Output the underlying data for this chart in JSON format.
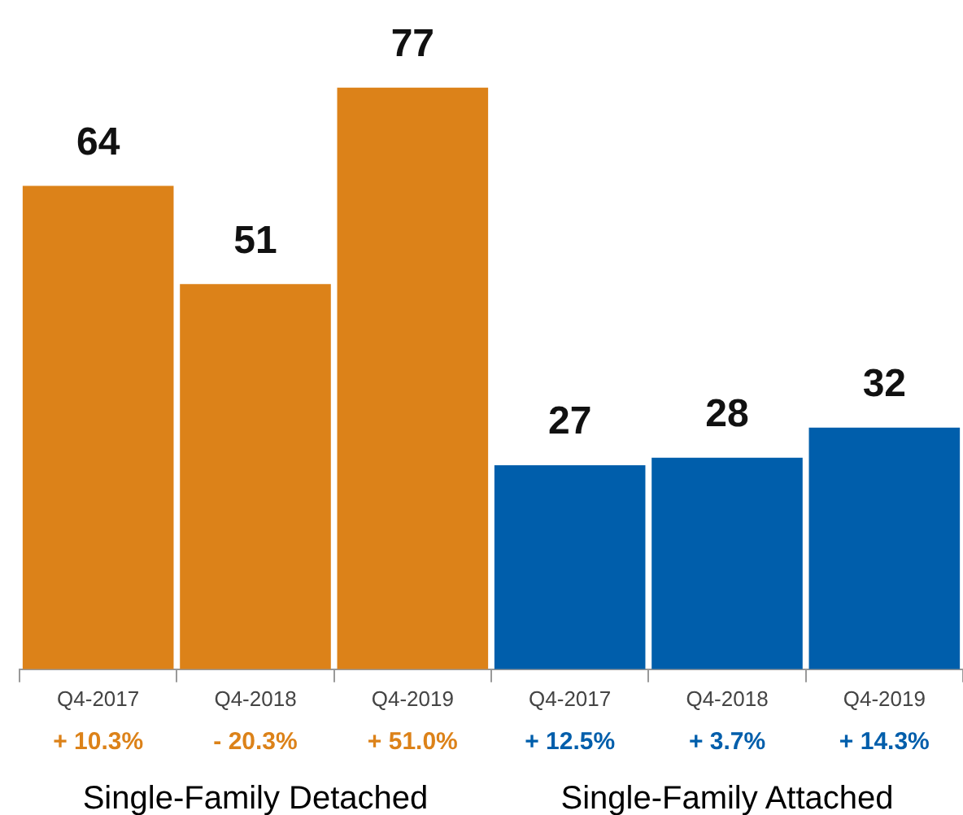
{
  "chart_data": {
    "type": "bar",
    "categories": [
      "Q4-2017",
      "Q4-2018",
      "Q4-2019",
      "Q4-2017",
      "Q4-2018",
      "Q4-2019"
    ],
    "series": [
      {
        "color": "#dc8219",
        "values": [
          64,
          51,
          77,
          null,
          null,
          null
        ]
      },
      {
        "color": "#005eab",
        "values": [
          null,
          null,
          null,
          27,
          28,
          32
        ]
      }
    ],
    "data_labels": true,
    "tick_labels": "x",
    "grid": false,
    "legend": false,
    "annotations": [
      "+ 10.3%",
      "- 20.3%",
      "+ 51.0%",
      "+ 12.5%",
      "+ 3.7%",
      "+ 14.3%",
      "Single-Family Detached",
      "Single-Family Attached"
    ]
  }
}
